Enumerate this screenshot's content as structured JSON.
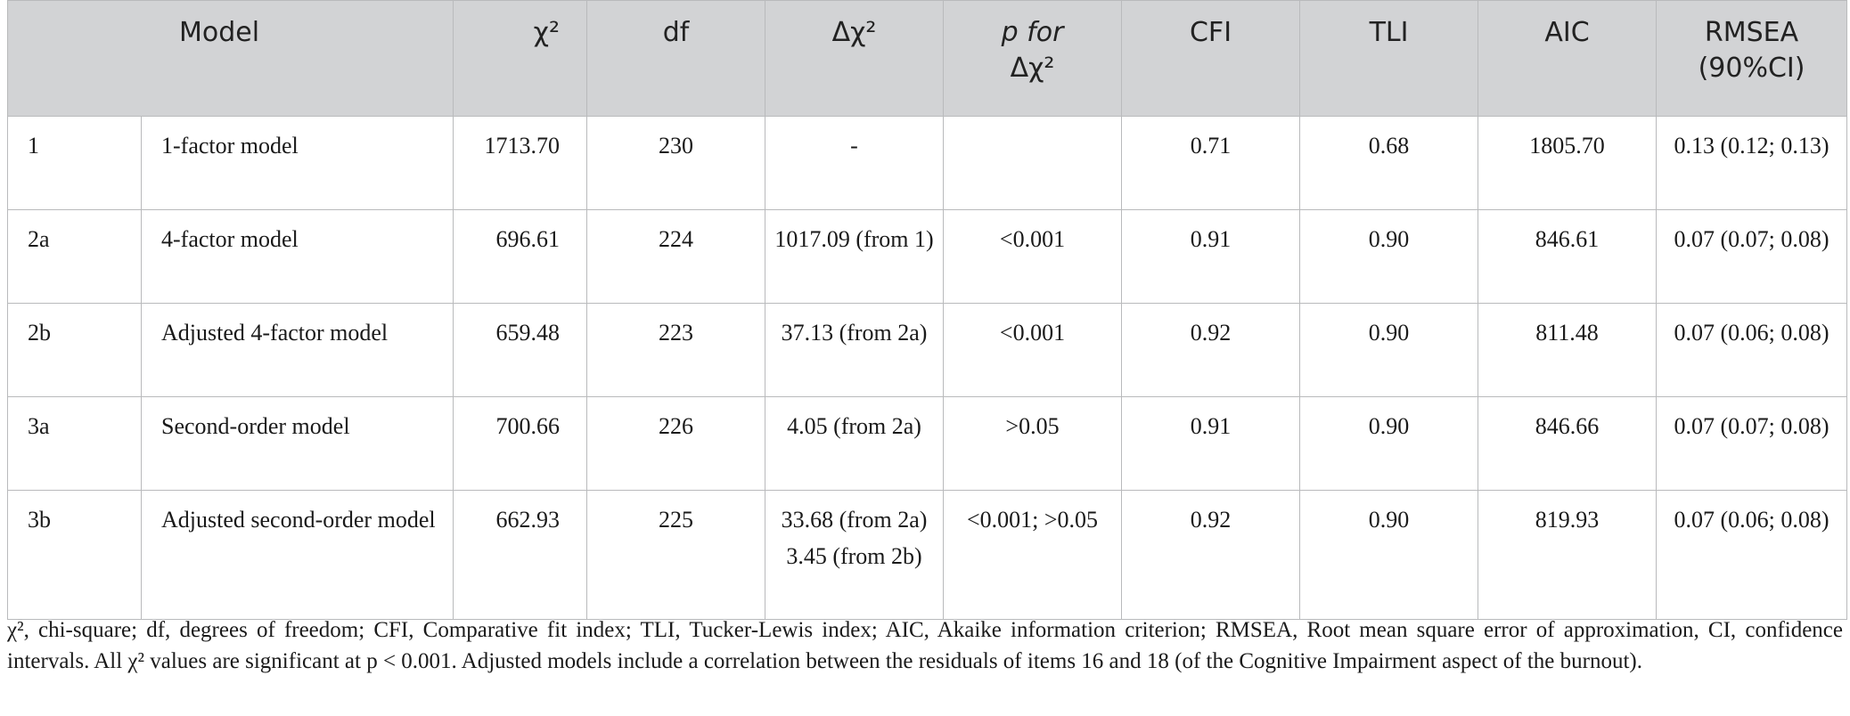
{
  "table": {
    "headers": {
      "model": "Model",
      "chi2": "χ²",
      "df": "df",
      "delta_chi2": "Δχ²",
      "p_line1": "p for",
      "p_line2": "Δχ²",
      "cfi": "CFI",
      "tli": "TLI",
      "aic": "AIC",
      "rmsea_line1": "RMSEA",
      "rmsea_line2": "(90%CI)"
    },
    "rows": [
      {
        "id": "1",
        "name": "1-factor model",
        "chi2": "1713.70",
        "df": "230",
        "dchi2": "-",
        "p": "",
        "cfi": "0.71",
        "tli": "0.68",
        "aic": "1805.70",
        "rmsea": "0.13 (0.12; 0.13)"
      },
      {
        "id": "2a",
        "name": "4-factor model",
        "chi2": "696.61",
        "df": "224",
        "dchi2": "1017.09 (from 1)",
        "p": "<0.001",
        "cfi": "0.91",
        "tli": "0.90",
        "aic": "846.61",
        "rmsea": "0.07 (0.07; 0.08)"
      },
      {
        "id": "2b",
        "name": "Adjusted 4-factor model",
        "chi2": "659.48",
        "df": "223",
        "dchi2": "37.13 (from 2a)",
        "p": "<0.001",
        "cfi": "0.92",
        "tli": "0.90",
        "aic": "811.48",
        "rmsea": "0.07 (0.06; 0.08)"
      },
      {
        "id": "3a",
        "name": "Second-order model",
        "chi2": "700.66",
        "df": "226",
        "dchi2": "4.05 (from 2a)",
        "p": ">0.05",
        "cfi": "0.91",
        "tli": "0.90",
        "aic": "846.66",
        "rmsea": "0.07 (0.07; 0.08)"
      },
      {
        "id": "3b",
        "name": "Adjusted second-order model",
        "chi2": "662.93",
        "df": "225",
        "dchi2": "33.68 (from 2a) 3.45 (from 2b)",
        "p": "<0.001; >0.05",
        "cfi": "0.92",
        "tli": "0.90",
        "aic": "819.93",
        "rmsea": "0.07 (0.06; 0.08)"
      }
    ]
  },
  "footnote": "χ², chi-square; df, degrees of freedom; CFI, Comparative fit index; TLI, Tucker-Lewis index; AIC, Akaike information criterion; RMSEA, Root mean square error of approximation, CI, confidence intervals. All χ² values are significant at p < 0.001. Adjusted models include a correlation between the residuals of items 16 and 18 (of the Cognitive Impairment aspect of the burnout)."
}
